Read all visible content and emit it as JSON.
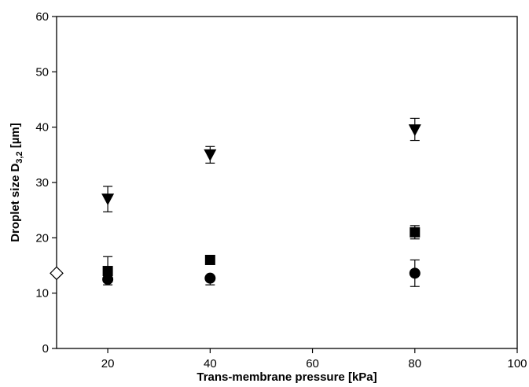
{
  "chart_data": {
    "type": "scatter",
    "xlabel": "Trans-membrane pressure [kPa]",
    "ylabel": {
      "prefix": "Droplet size D",
      "subscript": "3,2",
      "suffix": " [µm]"
    },
    "xlim": [
      10,
      100
    ],
    "ylim": [
      0,
      60
    ],
    "xticks": [
      20,
      40,
      60,
      80,
      100
    ],
    "yticks": [
      0,
      10,
      20,
      30,
      40,
      50,
      60
    ],
    "grid": false,
    "series": [
      {
        "marker": "triangle-down",
        "fill": "#000000",
        "points": [
          {
            "x": 20,
            "y": 27.0,
            "err_low": 2.3,
            "err_high": 2.3
          },
          {
            "x": 40,
            "y": 35.0,
            "err_low": 1.5,
            "err_high": 1.5
          },
          {
            "x": 80,
            "y": 39.5,
            "err_low": 1.9,
            "err_high": 2.1
          }
        ]
      },
      {
        "marker": "square",
        "fill": "#000000",
        "points": [
          {
            "x": 20,
            "y": 14.0,
            "err_low": 2.0,
            "err_high": 2.6
          },
          {
            "x": 40,
            "y": 16.0,
            "err_low": 0,
            "err_high": 0
          },
          {
            "x": 80,
            "y": 21.0,
            "err_low": 1.2,
            "err_high": 1.2
          }
        ]
      },
      {
        "marker": "circle",
        "fill": "#000000",
        "points": [
          {
            "x": 20,
            "y": 12.5,
            "err_low": 1.0,
            "err_high": 0
          },
          {
            "x": 40,
            "y": 12.7,
            "err_low": 1.2,
            "err_high": 0
          },
          {
            "x": 80,
            "y": 13.6,
            "err_low": 2.4,
            "err_high": 2.4
          }
        ]
      },
      {
        "marker": "diamond-open",
        "fill": "#ffffff",
        "points": [
          {
            "x": 10,
            "y": 13.6,
            "err_low": 0,
            "err_high": 0
          }
        ]
      }
    ]
  }
}
